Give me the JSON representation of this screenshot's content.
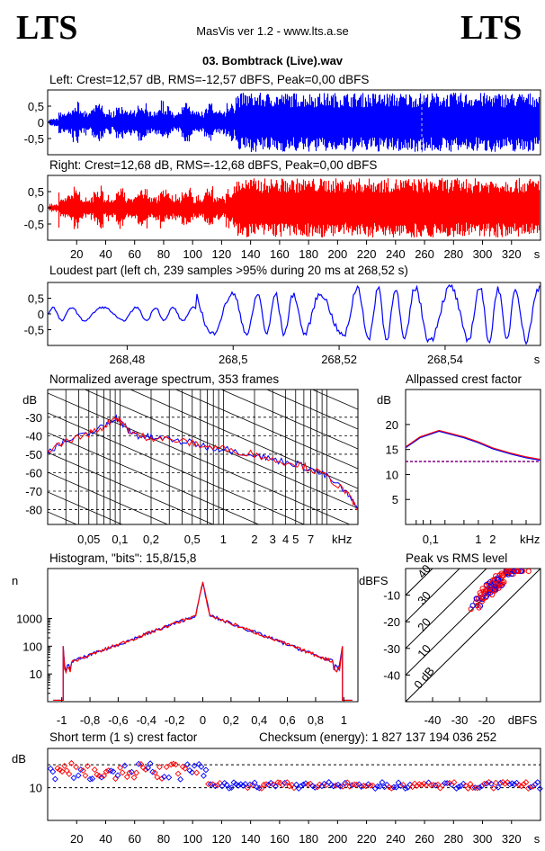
{
  "header": {
    "logo_left": "LTS",
    "logo_right": "LTS",
    "app": "MasVis ver 1.2 - www.lts.a.se",
    "file": "03. Bombtrack (Live).wav"
  },
  "colors": {
    "left": "#0000ff",
    "right": "#ff0000",
    "ref": "#800080"
  },
  "chart_data": [
    {
      "id": "left",
      "type": "line",
      "title": "Left: Crest=12,57 dB, RMS=-12,57 dBFS, Peak=0,00 dBFS",
      "yticks": [
        "0,5",
        "0",
        "-0,5"
      ],
      "ylim": [
        -1,
        1
      ]
    },
    {
      "id": "right",
      "type": "line",
      "title": "Right: Crest=12,68 dB, RMS=-12,68 dBFS, Peak=0,00 dBFS",
      "yticks": [
        "0,5",
        "0",
        "-0,5"
      ],
      "ylim": [
        -1,
        1
      ],
      "xticks": [
        "20",
        "40",
        "60",
        "80",
        "100",
        "120",
        "140",
        "160",
        "180",
        "200",
        "220",
        "240",
        "260",
        "280",
        "300",
        "320"
      ],
      "xunit": "s",
      "xlim": [
        0,
        340
      ]
    },
    {
      "id": "loudest",
      "type": "line",
      "title": "Loudest part (left  ch, 239 samples >95% during 20 ms at 268,52 s)",
      "yticks": [
        "0,5",
        "0",
        "-0,5"
      ],
      "xticks": [
        "268,48",
        "268,5",
        "268,52",
        "268,54"
      ],
      "xunit": "s",
      "xlim": [
        268.465,
        268.558
      ]
    },
    {
      "id": "spectrum",
      "type": "line",
      "title": "Normalized average spectrum, 353 frames",
      "ylabel": "dB",
      "yticks": [
        "-30",
        "-40",
        "-50",
        "-60",
        "-70",
        "-80"
      ],
      "ylim": [
        -88,
        -15
      ],
      "xticks": [
        "0,05",
        "0,1",
        "0,2",
        "0,5",
        "1",
        "2",
        "3",
        "4",
        "5",
        "7"
      ],
      "xunit": "kHz",
      "series": [
        {
          "x": [
            0.02,
            0.03,
            0.05,
            0.07,
            0.09,
            0.1,
            0.12,
            0.15,
            0.2,
            0.3,
            0.5,
            0.7,
            1,
            2,
            3,
            5,
            7,
            10,
            15,
            20
          ],
          "y": [
            -48,
            -43,
            -39,
            -35,
            -30,
            -32,
            -37,
            -40,
            -41,
            -42,
            -44,
            -46,
            -47,
            -50,
            -53,
            -55,
            -58,
            -62,
            -70,
            -80
          ]
        }
      ]
    },
    {
      "id": "crest",
      "type": "line",
      "title": "Allpassed crest factor",
      "ylabel": "dB",
      "yticks": [
        "20",
        "15",
        "10",
        "5"
      ],
      "ylim": [
        0,
        27
      ],
      "xticks": [
        "0,1",
        "1",
        "2",
        "kHz"
      ],
      "series": [
        {
          "x": [
            0.03,
            0.06,
            0.15,
            0.5,
            1,
            2,
            5,
            10,
            20
          ],
          "y": [
            15.5,
            17.5,
            18.8,
            17.5,
            16.5,
            15.3,
            14.2,
            13.5,
            13
          ]
        }
      ],
      "reference": 12.6
    },
    {
      "id": "histogram",
      "type": "line",
      "title": "Histogram, \"bits\": 15,8/15,8",
      "ylabel": "n",
      "yticks": [
        "1000",
        "100",
        "10"
      ],
      "xticks": [
        "-1",
        "-0,8",
        "-0,6",
        "-0,4",
        "-0,2",
        "0",
        "0,2",
        "0,4",
        "0,6",
        "0,8",
        "1"
      ],
      "xlim": [
        -1.1,
        1.1
      ]
    },
    {
      "id": "peakrms",
      "type": "scatter",
      "title": "Peak vs RMS level",
      "ylabel": "dBFS",
      "yticks": [
        "-10",
        "-20",
        "-30",
        "-40"
      ],
      "xticks": [
        "-40",
        "-30",
        "-20",
        "dBFS"
      ],
      "diag": [
        "40",
        "30",
        "20",
        "10",
        "0 dB"
      ],
      "xlim": [
        -50,
        0
      ],
      "ylim": [
        -50,
        0
      ]
    },
    {
      "id": "shortcrest",
      "type": "scatter",
      "title": "Short term (1 s) crest factor",
      "checksum": "Checksum (energy):  1 827 137 194 036 252",
      "ylabel": "dB",
      "yticks": [
        "10"
      ],
      "xticks": [
        "20",
        "40",
        "60",
        "80",
        "100",
        "120",
        "140",
        "160",
        "180",
        "200",
        "220",
        "240",
        "260",
        "280",
        "300",
        "320"
      ],
      "xunit": "s",
      "xlim": [
        0,
        340
      ]
    }
  ]
}
